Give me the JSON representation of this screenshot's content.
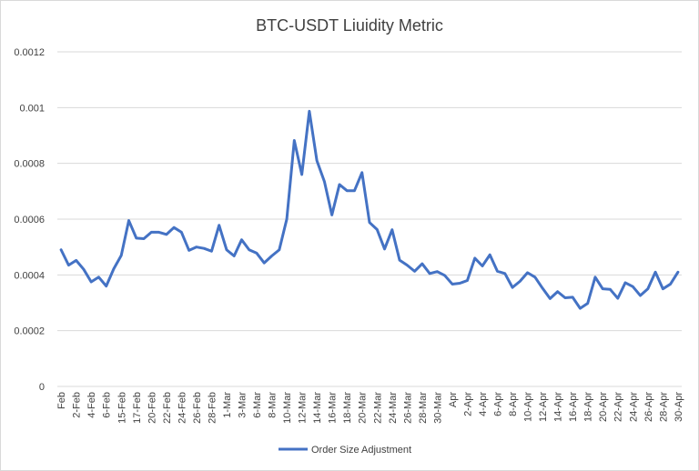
{
  "chart_data": {
    "type": "line",
    "title": "BTC-USDT Liuidity Metric",
    "xlabel": "",
    "ylabel": "",
    "ylim": [
      0,
      0.0012
    ],
    "y_ticks": [
      "0",
      "0.0002",
      "0.0004",
      "0.0006",
      "0.0008",
      "0.001",
      "0.0012"
    ],
    "grid": true,
    "legend_position": "bottom",
    "line_color": "#4472c4",
    "categories": [
      "Feb",
      "",
      "2-Feb",
      "",
      "4-Feb",
      "",
      "6-Feb",
      "",
      "15-Feb",
      "",
      "17-Feb",
      "",
      "20-Feb",
      "",
      "22-Feb",
      "",
      "24-Feb",
      "",
      "26-Feb",
      "",
      "28-Feb",
      "",
      "1-Mar",
      "",
      "3-Mar",
      "",
      "6-Mar",
      "",
      "8-Mar",
      "",
      "10-Mar",
      "",
      "12-Mar",
      "",
      "14-Mar",
      "",
      "16-Mar",
      "",
      "18-Mar",
      "",
      "20-Mar",
      "",
      "22-Mar",
      "",
      "24-Mar",
      "",
      "26-Mar",
      "",
      "28-Mar",
      "",
      "30-Mar",
      "",
      "Apr",
      "",
      "2-Apr",
      "",
      "4-Apr",
      "",
      "6-Apr",
      "",
      "8-Apr",
      "",
      "10-Apr",
      "",
      "12-Apr",
      "",
      "14-Apr",
      "",
      "16-Apr",
      "",
      "18-Apr",
      "",
      "20-Apr",
      "",
      "22-Apr",
      "",
      "24-Apr",
      "",
      "26-Apr",
      "",
      "28-Apr",
      "",
      "30-Apr"
    ],
    "series": [
      {
        "name": "Order Size Adjustment",
        "values": [
          0.00049,
          0.000435,
          0.000452,
          0.00042,
          0.000375,
          0.000392,
          0.00036,
          0.000422,
          0.00047,
          0.000595,
          0.000532,
          0.00053,
          0.000553,
          0.000553,
          0.000545,
          0.00057,
          0.000553,
          0.000488,
          0.0005,
          0.000495,
          0.000485,
          0.000578,
          0.00049,
          0.000468,
          0.000526,
          0.00049,
          0.000478,
          0.000443,
          0.000468,
          0.00049,
          0.0006,
          0.000882,
          0.00076,
          0.000987,
          0.00081,
          0.000735,
          0.000615,
          0.000724,
          0.000702,
          0.000702,
          0.000767,
          0.000588,
          0.000563,
          0.000493,
          0.000562,
          0.000453,
          0.000435,
          0.000413,
          0.00044,
          0.000405,
          0.000412,
          0.000398,
          0.000367,
          0.00037,
          0.00038,
          0.00046,
          0.000432,
          0.000472,
          0.000413,
          0.000405,
          0.000355,
          0.000377,
          0.000408,
          0.000392,
          0.000352,
          0.000315,
          0.00034,
          0.000318,
          0.00032,
          0.00028,
          0.000298,
          0.000392,
          0.00035,
          0.000348,
          0.000316,
          0.000372,
          0.000358,
          0.000326,
          0.00035,
          0.00041,
          0.00035,
          0.000367,
          0.00041
        ]
      }
    ]
  }
}
